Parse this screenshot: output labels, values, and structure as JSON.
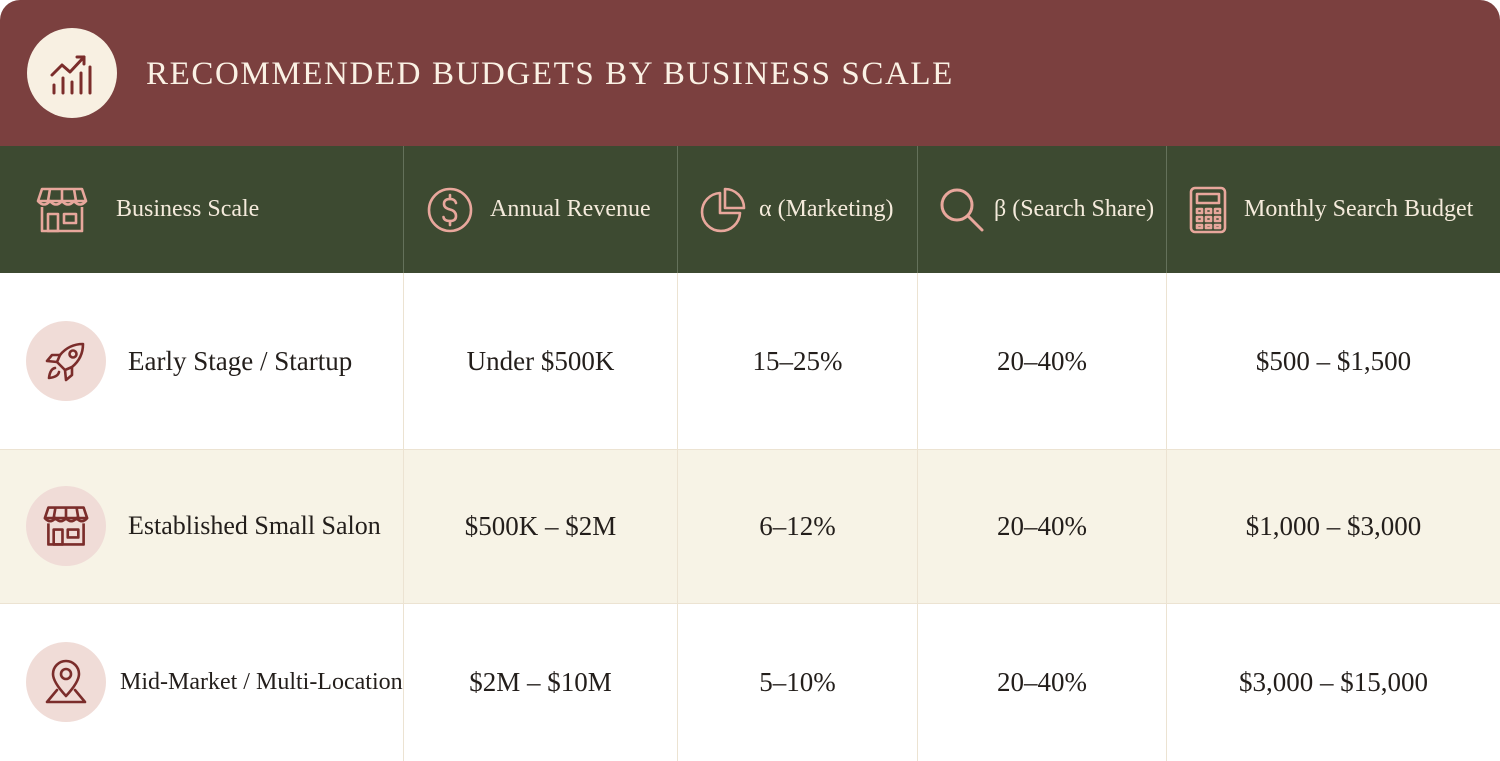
{
  "title": "RECOMMENDED BUDGETS BY BUSINESS SCALE",
  "icons": {
    "title": "chart-growth-icon",
    "business_scale": "storefront-icon",
    "annual_revenue": "dollar-circle-icon",
    "alpha": "pie-chart-icon",
    "beta": "search-icon",
    "monthly_budget": "calculator-icon"
  },
  "colors": {
    "title_bar": "#7b403f",
    "header_row": "#3d4a31",
    "icon_accent": "#e8a79c",
    "row_icon": "#7b2d2b",
    "row_icon_bg": "#f0dcd7",
    "alt_row": "#f7f3e6"
  },
  "columns": [
    "Business Scale",
    "Annual Revenue",
    "α (Marketing)",
    "β (Search Share)",
    "Monthly Search Budget"
  ],
  "rows": [
    {
      "icon": "rocket-icon",
      "scale": "Early Stage / Startup",
      "revenue": "Under $500K",
      "alpha": "15–25%",
      "beta": "20–40%",
      "budget": "$500 – $1,500"
    },
    {
      "icon": "storefront-icon",
      "scale": "Established Small Salon",
      "revenue": "$500K – $2M",
      "alpha": "6–12%",
      "beta": "20–40%",
      "budget": "$1,000 – $3,000"
    },
    {
      "icon": "map-pin-icon",
      "scale": "Mid-Market / Multi-Location",
      "revenue": "$2M – $10M",
      "alpha": "5–10%",
      "beta": "20–40%",
      "budget": "$3,000 – $15,000"
    }
  ]
}
